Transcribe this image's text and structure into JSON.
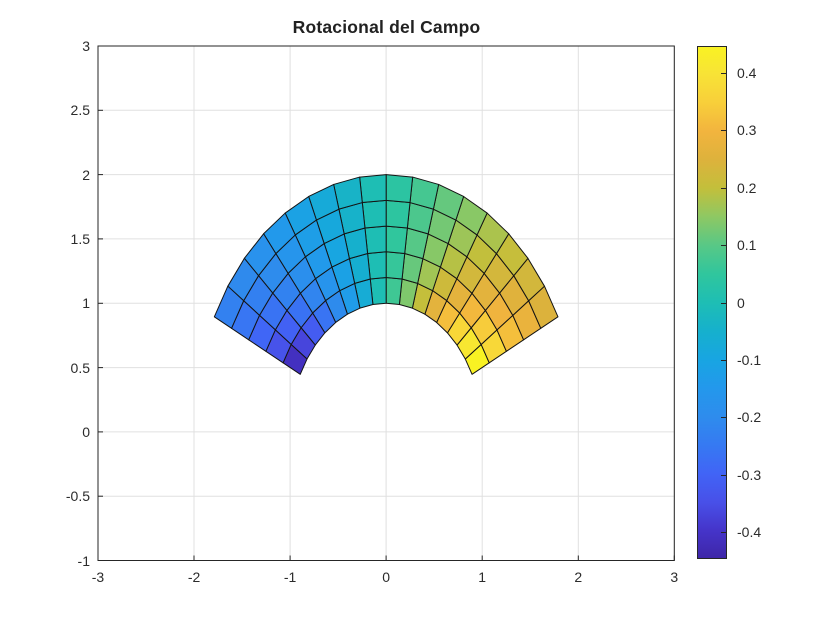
{
  "title": "Rotacional del Campo",
  "axes": {
    "xlim": [
      -3,
      3
    ],
    "ylim": [
      -1,
      3
    ],
    "x_axis": {
      "ticks": [
        -3,
        -2,
        -1,
        0,
        1,
        2,
        3
      ],
      "labels": [
        "-3",
        "-2",
        "-1",
        "0",
        "1",
        "2",
        "3"
      ]
    },
    "y_axis": {
      "ticks": [
        -1,
        -0.5,
        0,
        0.5,
        1,
        1.5,
        2,
        2.5,
        3
      ],
      "labels": [
        "-1",
        "-0.5",
        "0",
        "0.5",
        "1",
        "1.5",
        "2",
        "2.5",
        "3"
      ]
    },
    "grid": true,
    "grid_color": "#e0e0e0",
    "box_color": "#262626",
    "label_color": "#2b2b2b"
  },
  "colorbar": {
    "location": "right",
    "ticks": [
      0.4,
      0.3,
      0.2,
      0.1,
      0,
      -0.1,
      -0.2,
      -0.3,
      -0.4
    ],
    "labels": [
      "0.4",
      "0.3",
      "0.2",
      "0.1",
      "0",
      "-0.1",
      "-0.2",
      "-0.3",
      "-0.4"
    ],
    "vmin": -0.4472,
    "vmax": 0.4472
  },
  "chart_data": {
    "type": "heatmap",
    "subtype": "pseudocolor-polar-mesh",
    "title": "Rotacional del Campo",
    "xlabel": "",
    "ylabel": "",
    "xlim": [
      -3,
      3
    ],
    "ylim": [
      -1,
      3
    ],
    "grid": true,
    "legend": "colorbar-right",
    "clim": [
      -0.4472,
      0.4472
    ],
    "mesh": {
      "r_min": 1.0,
      "r_max": 2.0,
      "n_rings": 5,
      "theta_min_rad": 0.463648,
      "theta_max_rad": 2.677945,
      "n_sectors": 16,
      "edge_color": "#141414",
      "shading": "flat-lower-corner"
    },
    "values_note": "curl value per cell = cos(theta_low)/(2*r_inner), rows = rings r=1.0,1.2,1.4,1.6,1.8 (inner radius), cols = sectors from theta=0.4636 rad (right) to 2.678 rad (left)",
    "values": [
      [
        0.4472,
        0.4121,
        0.3693,
        0.319,
        0.2629,
        0.2017,
        0.1367,
        0.069,
        0.0,
        -0.069,
        -0.1367,
        -0.2017,
        -0.2629,
        -0.319,
        -0.3693,
        -0.4121
      ],
      [
        0.3727,
        0.3434,
        0.3077,
        0.2658,
        0.2191,
        0.1681,
        0.1139,
        0.0575,
        0.0,
        -0.0575,
        -0.1139,
        -0.1681,
        -0.2191,
        -0.2658,
        -0.3077,
        -0.3434
      ],
      [
        0.3194,
        0.2944,
        0.2638,
        0.2279,
        0.1878,
        0.1441,
        0.0976,
        0.0493,
        0.0,
        -0.0493,
        -0.0976,
        -0.1441,
        -0.1878,
        -0.2279,
        -0.2638,
        -0.2944
      ],
      [
        0.2795,
        0.2576,
        0.2308,
        0.1994,
        0.1643,
        0.1261,
        0.0854,
        0.0431,
        0.0,
        -0.0431,
        -0.0854,
        -0.1261,
        -0.1643,
        -0.1994,
        -0.2308,
        -0.2576
      ],
      [
        0.2485,
        0.2289,
        0.2051,
        0.1773,
        0.146,
        0.1121,
        0.0759,
        0.0383,
        0.0,
        -0.0383,
        -0.0759,
        -0.1121,
        -0.146,
        -0.1773,
        -0.2051,
        -0.2289
      ]
    ],
    "colormap": {
      "name": "parula",
      "stops": [
        [
          0.0,
          "#3e26a8"
        ],
        [
          0.053,
          "#4534c9"
        ],
        [
          0.109,
          "#4850e8"
        ],
        [
          0.165,
          "#4164f6"
        ],
        [
          0.22,
          "#3679f2"
        ],
        [
          0.276,
          "#2e8ced"
        ],
        [
          0.332,
          "#2398ec"
        ],
        [
          0.388,
          "#18a5e2"
        ],
        [
          0.444,
          "#16b0cd"
        ],
        [
          0.5,
          "#1ebeb4"
        ],
        [
          0.556,
          "#30c69d"
        ],
        [
          0.612,
          "#58c886"
        ],
        [
          0.668,
          "#8ec863"
        ],
        [
          0.724,
          "#c3bf3b"
        ],
        [
          0.779,
          "#ddb23c"
        ],
        [
          0.835,
          "#f2b43e"
        ],
        [
          0.891,
          "#f8cf3a"
        ],
        [
          0.947,
          "#f8e336"
        ],
        [
          1.0,
          "#f9f223"
        ]
      ]
    }
  }
}
